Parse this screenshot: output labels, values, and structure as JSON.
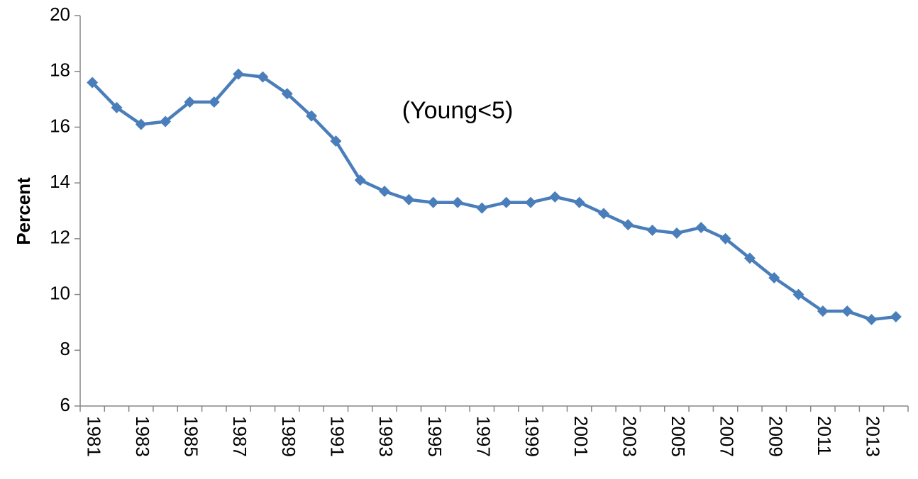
{
  "chart_data": {
    "type": "line",
    "y_label": "Percent",
    "annotation": "(Young<5)",
    "categories": [
      "1981",
      null,
      "1983",
      null,
      "1985",
      null,
      "1987",
      null,
      "1989",
      null,
      "1991",
      null,
      "1993",
      null,
      "1995",
      null,
      "1997",
      null,
      "1999",
      null,
      "2001",
      null,
      "2003",
      null,
      "2005",
      null,
      "2007",
      null,
      "2009",
      null,
      "2011",
      null,
      "2013",
      null
    ],
    "series": [
      {
        "color": "#4a7ebb",
        "values": [
          17.6,
          16.7,
          16.1,
          16.2,
          16.9,
          16.9,
          17.9,
          17.8,
          17.2,
          16.4,
          15.5,
          14.1,
          13.7,
          13.4,
          13.3,
          13.3,
          13.1,
          13.3,
          13.3,
          13.5,
          13.3,
          12.9,
          12.5,
          12.3,
          12.2,
          12.4,
          12.0,
          11.3,
          10.6,
          10.0,
          9.4,
          9.4,
          9.1,
          9.2
        ]
      }
    ],
    "ylim": [
      6,
      20
    ],
    "yticks": [
      6,
      8,
      10,
      12,
      14,
      16,
      18,
      20
    ],
    "grid": false
  }
}
